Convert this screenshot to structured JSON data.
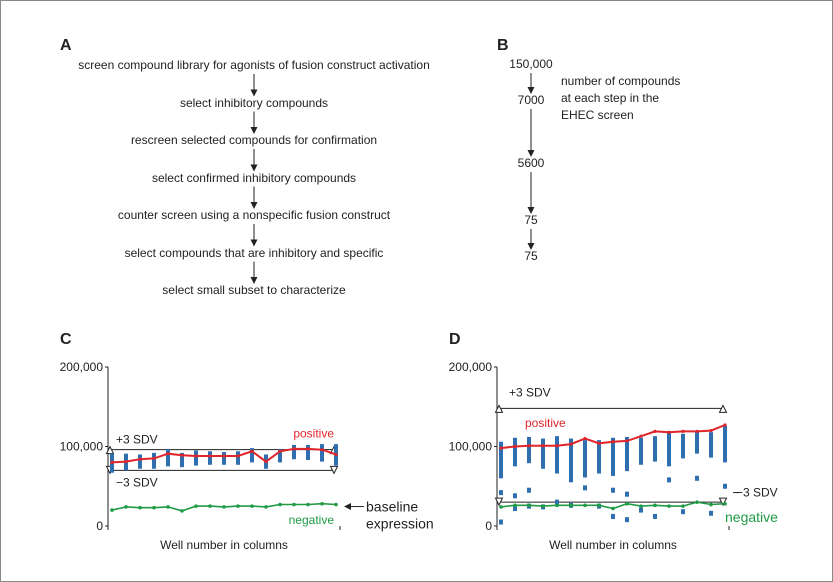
{
  "panel_a": {
    "label": "A",
    "steps": [
      "screen compound library for agonists of fusion construct activation",
      "select inhibitory compounds",
      "rescreen selected compounds for confirmation",
      "select confirmed inhibitory compounds",
      "counter screen using a nonspecific fusion construct",
      "select compounds that are inhibitory and specific",
      "select small subset to characterize"
    ]
  },
  "panel_b": {
    "label": "B",
    "counts": [
      "150,000",
      "7000",
      "5600",
      "75",
      "75"
    ],
    "note_line1": "number of compounds",
    "note_line2": "at each step in the",
    "note_line3": "EHEC screen"
  },
  "chart_data": [
    {
      "panel": "C",
      "type": "line",
      "xlabel": "Well number in columns",
      "ylabel": "",
      "ylim": [
        0,
        200000
      ],
      "yticks": [
        "200,000",
        "100,000",
        "0"
      ],
      "plus_label": "+3 SDV",
      "minus_label": "−3 SDV",
      "plus_value": 96000,
      "minus_value": 70000,
      "positive_label": "positive",
      "negative_label": "negative",
      "baseline_label_line1": "baseline",
      "baseline_label_line2": "expression",
      "wells": 17,
      "positive": [
        80000,
        81000,
        84000,
        85000,
        91000,
        89000,
        88000,
        88000,
        88000,
        88000,
        94000,
        81000,
        94000,
        97000,
        97000,
        96000,
        90000
      ],
      "negative": [
        20000,
        24000,
        23000,
        23000,
        24000,
        19000,
        25000,
        25000,
        24000,
        25000,
        25000,
        24000,
        27000,
        27000,
        27000,
        28000,
        27000
      ],
      "bar_low": [
        67000,
        70000,
        72000,
        72000,
        75000,
        74000,
        76000,
        77000,
        77000,
        77000,
        80000,
        72000,
        80000,
        84000,
        83000,
        81000,
        76000
      ],
      "bar_high": [
        91000,
        91000,
        90000,
        92000,
        97000,
        92000,
        95000,
        94000,
        93000,
        94000,
        98000,
        90000,
        97000,
        102000,
        102000,
        103000,
        103000
      ]
    },
    {
      "panel": "D",
      "type": "line",
      "xlabel": "Well number in columns",
      "ylabel": "",
      "ylim": [
        0,
        200000
      ],
      "yticks": [
        "200,000",
        "100,000",
        "0"
      ],
      "plus_label": "+3 SDV",
      "minus_label": "−3 SDV",
      "plus_value": 148000,
      "minus_value": 30000,
      "positive_label": "positive",
      "negative_label": "negative",
      "wells": 17,
      "positive": [
        98000,
        100000,
        101000,
        101000,
        101000,
        103000,
        110000,
        104000,
        106000,
        107000,
        113000,
        119000,
        118000,
        119000,
        119000,
        120000,
        127000
      ],
      "negative": [
        24000,
        26000,
        26000,
        25000,
        26000,
        26000,
        26000,
        26000,
        22000,
        28000,
        25000,
        26000,
        25000,
        25000,
        30000,
        27000,
        28000
      ],
      "bar_low": [
        60000,
        75000,
        79000,
        72000,
        66000,
        55000,
        61000,
        66000,
        63000,
        69000,
        77000,
        81000,
        75000,
        85000,
        91000,
        86000,
        80000
      ],
      "bar_high": [
        106000,
        111000,
        112000,
        110000,
        113000,
        110000,
        108000,
        108000,
        111000,
        112000,
        111000,
        113000,
        119000,
        116000,
        118000,
        118000,
        126000
      ],
      "outliers": [
        [
          0,
          5000
        ],
        [
          0,
          42000
        ],
        [
          1,
          38000
        ],
        [
          1,
          22000
        ],
        [
          2,
          45000
        ],
        [
          2,
          25000
        ],
        [
          3,
          24000
        ],
        [
          4,
          30000
        ],
        [
          5,
          26000
        ],
        [
          6,
          68000
        ],
        [
          6,
          48000
        ],
        [
          7,
          25000
        ],
        [
          8,
          12000
        ],
        [
          8,
          45000
        ],
        [
          9,
          40000
        ],
        [
          9,
          8000
        ],
        [
          10,
          20000
        ],
        [
          11,
          12000
        ],
        [
          12,
          58000
        ],
        [
          13,
          18000
        ],
        [
          14,
          60000
        ],
        [
          15,
          16000
        ],
        [
          16,
          50000
        ]
      ]
    }
  ]
}
